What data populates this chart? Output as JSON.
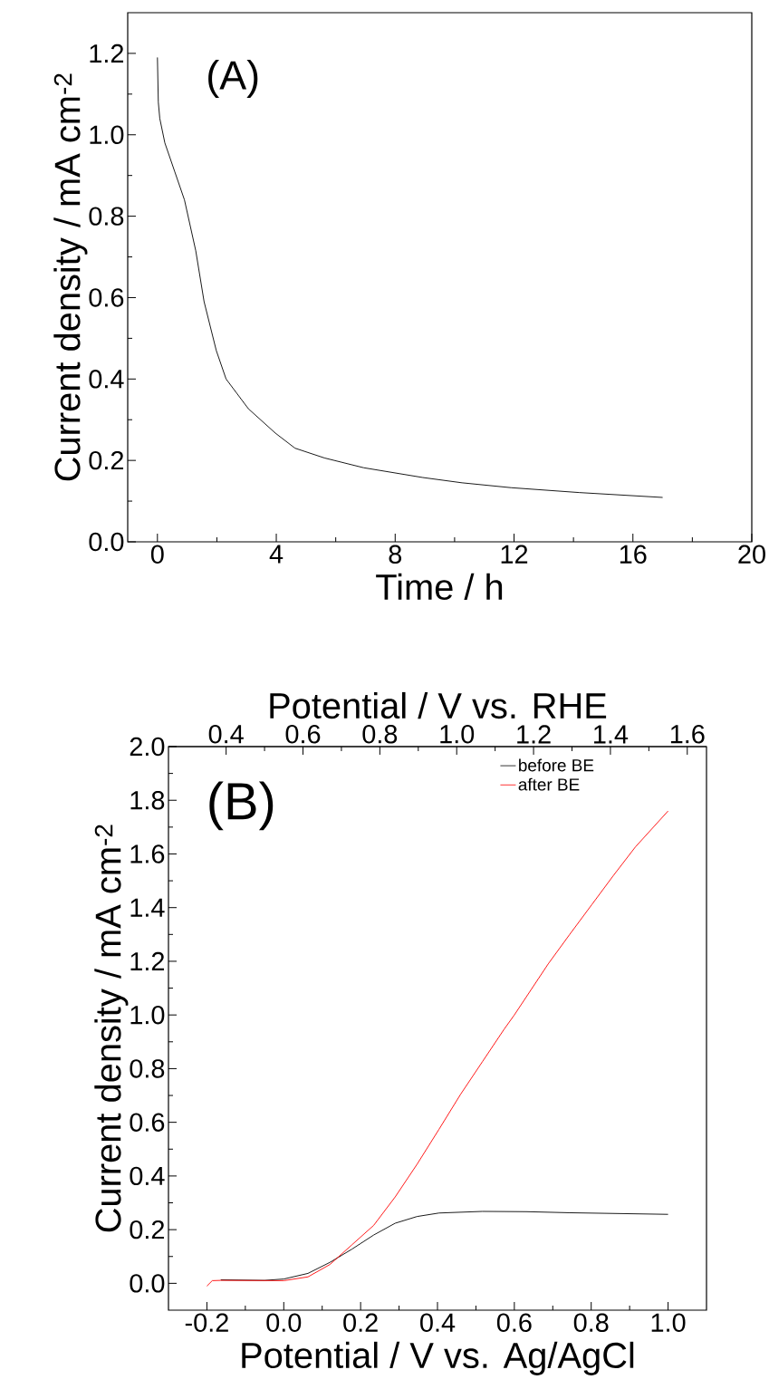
{
  "chart_data": [
    {
      "type": "line",
      "xlabel": "Time / h",
      "ylabel": "Current density / mA cm$^{-2}$",
      "annotations": [
        "(A)"
      ],
      "xlim": [
        -1,
        20
      ],
      "ylim": [
        0,
        1.3
      ],
      "xticks": [
        0,
        4,
        8,
        12,
        16,
        20
      ],
      "yticks": [
        {
          "value": 0,
          "label": "0.0"
        },
        {
          "value": 0.2,
          "label": "0.2"
        },
        {
          "value": 0.4,
          "label": "0.4"
        },
        {
          "value": 0.6,
          "label": "0.6"
        },
        {
          "value": 0.8,
          "label": "0.8"
        },
        {
          "value": 1.0,
          "label": "1.0"
        },
        {
          "value": 1.2,
          "label": "1.2"
        }
      ],
      "grid": false,
      "legend": false,
      "marker": "none",
      "line_style": "solid",
      "series": [
        {
          "color": "#000000",
          "x": [
            0,
            0.03,
            0.08,
            0.25,
            0.58,
            0.91,
            1.29,
            1.57,
            1.98,
            2.31,
            3.06,
            3.97,
            4.63,
            5.62,
            6.94,
            8.93,
            10.25,
            11.9,
            14.2,
            17.0
          ],
          "values": [
            1.19,
            1.08,
            1.04,
            0.98,
            0.91,
            0.84,
            0.715,
            0.59,
            0.47,
            0.4,
            0.327,
            0.267,
            0.23,
            0.206,
            0.182,
            0.158,
            0.145,
            0.133,
            0.121,
            0.109
          ]
        }
      ]
    },
    {
      "type": "line",
      "xlabel": "Potential / V vs. Ag/AgCl",
      "x2label": "Potential / V vs. RHE",
      "ylabel": "Current density / mA cm$^{-2}$",
      "annotations": [
        "(B)"
      ],
      "xlim": [
        -0.3,
        1.1
      ],
      "ylim": [
        -0.1,
        2.0
      ],
      "x2lim": [
        0.25,
        1.65
      ],
      "xticks": [
        {
          "value": -0.2,
          "label": "-0.2"
        },
        {
          "value": 0,
          "label": "0.0"
        },
        {
          "value": 0.2,
          "label": "0.2"
        },
        {
          "value": 0.4,
          "label": "0.4"
        },
        {
          "value": 0.6,
          "label": "0.6"
        },
        {
          "value": 0.8,
          "label": "0.8"
        },
        {
          "value": 1.0,
          "label": "1.0"
        }
      ],
      "x2ticks": [
        0.4,
        0.6,
        0.8,
        {
          "value": 1.0,
          "label": "1.0"
        },
        1.2,
        1.4,
        1.6
      ],
      "yticks": [
        {
          "value": 0,
          "label": "0.0"
        },
        {
          "value": 0.2,
          "label": "0.2"
        },
        {
          "value": 0.4,
          "label": "0.4"
        },
        {
          "value": 0.6,
          "label": "0.6"
        },
        {
          "value": 0.8,
          "label": "0.8"
        },
        {
          "value": 1.0,
          "label": "1.0"
        },
        {
          "value": 1.2,
          "label": "1.2"
        },
        {
          "value": 1.4,
          "label": "1.4"
        },
        {
          "value": 1.6,
          "label": "1.6"
        },
        {
          "value": 1.8,
          "label": "1.8"
        },
        {
          "value": 2.0,
          "label": "2.0"
        }
      ],
      "grid": false,
      "legend": "top right",
      "marker": "none",
      "line_style": "solid",
      "series": [
        {
          "name": "before BE",
          "color": "#000000",
          "x": [
            -0.164,
            -0.05,
            0.0,
            0.063,
            0.12,
            0.177,
            0.234,
            0.29,
            0.347,
            0.404,
            0.517,
            0.631,
            0.744,
            1.0
          ],
          "values": [
            0.013,
            0.011,
            0.016,
            0.037,
            0.078,
            0.127,
            0.18,
            0.224,
            0.249,
            0.262,
            0.268,
            0.267,
            0.263,
            0.257
          ]
        },
        {
          "name": "after BE",
          "color": "#ff0000",
          "x": [
            -0.2,
            -0.186,
            -0.164,
            0.0,
            0.063,
            0.12,
            0.177,
            0.234,
            0.29,
            0.347,
            0.404,
            0.46,
            0.517,
            0.574,
            0.6,
            0.688,
            0.744,
            0.801,
            0.858,
            0.915,
            1.0
          ],
          "values": [
            -0.01,
            0.01,
            0.011,
            0.01,
            0.024,
            0.07,
            0.143,
            0.216,
            0.322,
            0.444,
            0.574,
            0.704,
            0.826,
            0.948,
            1.0,
            1.19,
            1.3,
            1.41,
            1.52,
            1.626,
            1.76
          ]
        }
      ]
    }
  ]
}
